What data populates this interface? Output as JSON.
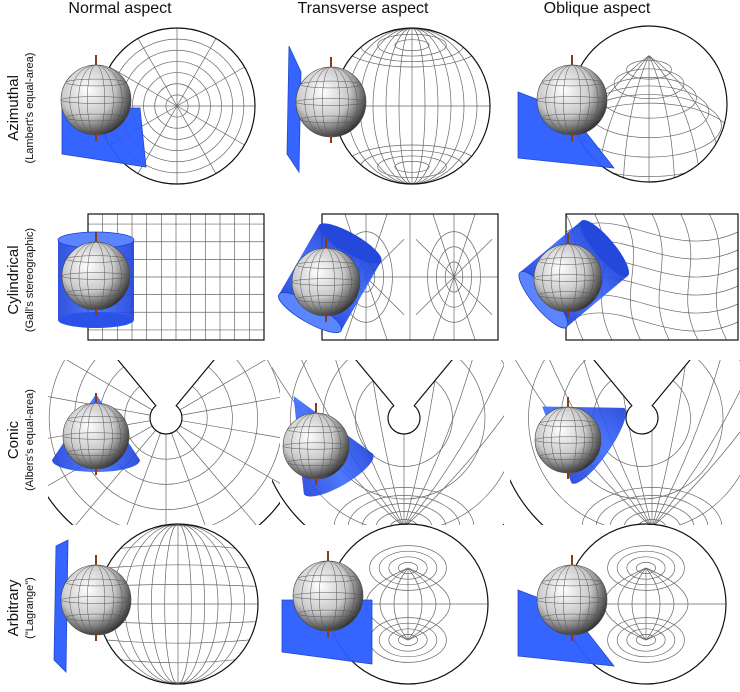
{
  "columns": [
    {
      "label": "Normal aspect"
    },
    {
      "label": "Transverse aspect"
    },
    {
      "label": "Oblique aspect"
    }
  ],
  "rows": [
    {
      "title": "Azimuthal",
      "subtitle": "(Lambert's equal-area)",
      "surface": "plane"
    },
    {
      "title": "Cylindrical",
      "subtitle": "(Gall's stereographic)",
      "surface": "cylinder"
    },
    {
      "title": "Conic",
      "subtitle": "(Albers's equal-area)",
      "surface": "cone"
    },
    {
      "title": "Arbitrary",
      "subtitle": "(\"Lagrange\")",
      "surface": "plane"
    }
  ],
  "colors": {
    "surface": "#2255ee",
    "grid": "#666666",
    "outline": "#111111",
    "globe": "#cccccc",
    "axis": "#8b3a1a"
  }
}
